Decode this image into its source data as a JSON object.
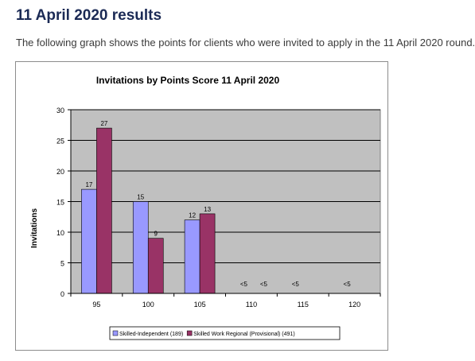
{
  "page": {
    "heading": "11 April 2020 results",
    "intro": "The following graph shows the points for clients who were invited to apply in the 11 April 2020 round."
  },
  "chart_data": {
    "type": "bar",
    "title": "Invitations by Points Score 11 April 2020",
    "xlabel": "",
    "ylabel": "Invitations",
    "categories": [
      "95",
      "100",
      "105",
      "110",
      "115",
      "120"
    ],
    "ylim": [
      0,
      30
    ],
    "yticks": [
      0,
      5,
      10,
      15,
      20,
      25,
      30
    ],
    "grid": true,
    "legend_position": "bottom",
    "series": [
      {
        "name": "Skilled-Independent (189)",
        "color": "#9999ff",
        "values": [
          17,
          15,
          12,
          null,
          null,
          null
        ],
        "labels": [
          "17",
          "15",
          "12",
          "<5",
          "<5",
          "<5"
        ]
      },
      {
        "name": "Skilled Work Regional (Provisional) (491)",
        "color": "#993366",
        "values": [
          27,
          9,
          13,
          null,
          null,
          null
        ],
        "labels": [
          "27",
          "9",
          "13",
          "<5",
          "",
          ""
        ]
      }
    ],
    "colors": {
      "plot_background": "#c0c0c0"
    }
  }
}
